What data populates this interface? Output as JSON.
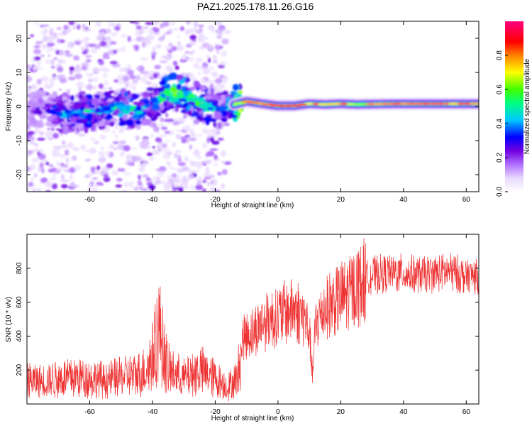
{
  "title": "PAZ1.2025.178.11.26.G16",
  "chart_data": [
    {
      "type": "heatmap",
      "xlabel": "Height of straight line (km)",
      "ylabel": "Frequency (Hz)",
      "xlim": [
        -80,
        64
      ],
      "ylim": [
        -25,
        25
      ],
      "xticks": [
        -60,
        -40,
        -20,
        0,
        20,
        40,
        60
      ],
      "yticks": [
        -20,
        -10,
        0,
        10,
        20
      ],
      "colorbar": {
        "label": "Normalized spectral amplitude",
        "range": [
          0,
          1
        ],
        "ticks": [
          0.0,
          0.2,
          0.4,
          0.6,
          0.8
        ],
        "colormap": "rainbow (white-lavender-purple-blue-cyan-green-yellow-orange-red-magenta)"
      },
      "ridge": {
        "description": "Dominant frequency ridge near 0 Hz; scattered weak speckles below about -17 km, narrow strong line above about -12 km",
        "points": [
          {
            "x": -78,
            "y": -1.0,
            "amp": 0.18
          },
          {
            "x": -72,
            "y": -0.5,
            "amp": 0.22
          },
          {
            "x": -68,
            "y": -2.5,
            "amp": 0.3
          },
          {
            "x": -65,
            "y": -2.0,
            "amp": 0.32
          },
          {
            "x": -60,
            "y": -2.0,
            "amp": 0.35
          },
          {
            "x": -55,
            "y": -1.0,
            "amp": 0.3
          },
          {
            "x": -52,
            "y": 0.0,
            "amp": 0.38
          },
          {
            "x": -48,
            "y": -0.5,
            "amp": 0.4
          },
          {
            "x": -45,
            "y": -1.5,
            "amp": 0.35
          },
          {
            "x": -40,
            "y": 1.0,
            "amp": 0.32
          },
          {
            "x": -37,
            "y": 3.0,
            "amp": 0.4
          },
          {
            "x": -34,
            "y": 4.5,
            "amp": 0.45
          },
          {
            "x": -30,
            "y": 3.5,
            "amp": 0.42
          },
          {
            "x": -26,
            "y": 2.0,
            "amp": 0.4
          },
          {
            "x": -22,
            "y": -0.5,
            "amp": 0.36
          },
          {
            "x": -18,
            "y": -1.0,
            "amp": 0.25
          },
          {
            "x": -14,
            "y": 0.5,
            "amp": 0.5
          },
          {
            "x": -10,
            "y": 1.5,
            "amp": 0.85
          },
          {
            "x": -5,
            "y": 0.8,
            "amp": 0.8
          },
          {
            "x": 0,
            "y": 0.2,
            "amp": 0.9
          },
          {
            "x": 5,
            "y": 0.2,
            "amp": 0.85
          },
          {
            "x": 10,
            "y": 0.8,
            "amp": 0.75
          },
          {
            "x": 15,
            "y": 0.6,
            "amp": 0.8
          },
          {
            "x": 20,
            "y": 0.8,
            "amp": 0.85
          },
          {
            "x": 25,
            "y": 0.6,
            "amp": 0.7
          },
          {
            "x": 30,
            "y": 0.7,
            "amp": 0.75
          },
          {
            "x": 40,
            "y": 0.8,
            "amp": 0.85
          },
          {
            "x": 50,
            "y": 0.8,
            "amp": 0.85
          },
          {
            "x": 60,
            "y": 0.8,
            "amp": 0.85
          },
          {
            "x": 64,
            "y": 0.8,
            "amp": 0.85
          }
        ]
      }
    },
    {
      "type": "line",
      "xlabel": "Height of straight line (km)",
      "ylabel": "SNR (10 * v/v)",
      "xlim": [
        -80,
        64
      ],
      "ylim": [
        0,
        1000
      ],
      "xticks": [
        -60,
        -40,
        -20,
        0,
        20,
        40,
        60
      ],
      "yticks": [
        200,
        400,
        600,
        800
      ],
      "line_color": "#ee3333",
      "series": [
        {
          "x": [
            -80,
            -75,
            -70,
            -65,
            -60,
            -55,
            -50,
            -45,
            -42,
            -40,
            -38,
            -35,
            -30,
            -27,
            -25,
            -20,
            -16,
            -13,
            -11,
            -8,
            -5,
            0,
            5,
            8,
            10,
            11,
            12,
            15,
            20,
            25,
            30,
            35,
            40,
            45,
            50,
            55,
            60,
            64
          ],
          "values": [
            140,
            130,
            150,
            160,
            150,
            140,
            160,
            170,
            200,
            280,
            450,
            200,
            150,
            180,
            200,
            150,
            100,
            150,
            400,
            420,
            480,
            520,
            560,
            520,
            420,
            170,
            470,
            570,
            620,
            690,
            760,
            770,
            770,
            760,
            770,
            780,
            750,
            760
          ]
        }
      ]
    }
  ]
}
